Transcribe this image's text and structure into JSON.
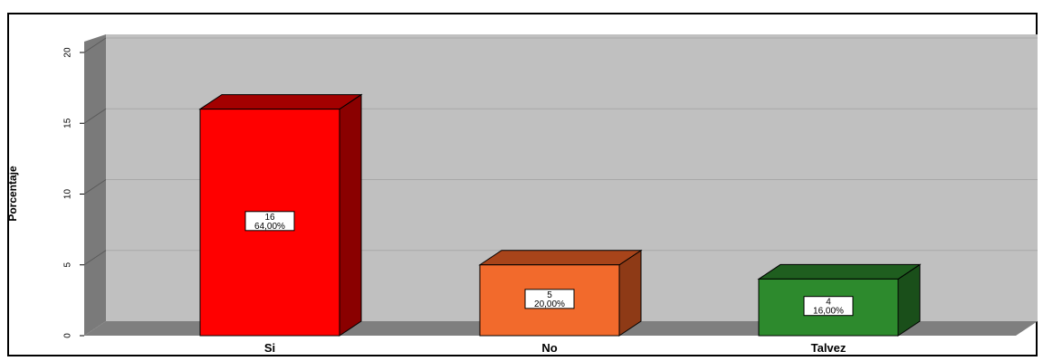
{
  "chart_data": {
    "type": "bar",
    "categories": [
      "Si",
      "No",
      "Talvez"
    ],
    "values": [
      16,
      5,
      4
    ],
    "value_labels": [
      "16\n64,00%",
      "5\n20,00%",
      "4\n16,00%"
    ],
    "percent_labels": [
      "64,00%",
      "20,00%",
      "16,00%"
    ],
    "colors": [
      "#ff0000",
      "#f26a2c",
      "#2d8a2d"
    ],
    "top_colors": [
      "#a30000",
      "#a8441a",
      "#1f5e1f"
    ],
    "side_colors": [
      "#8a0000",
      "#8e3a16",
      "#1a4f1a"
    ],
    "ylabel": "Porcentaje",
    "xlabel": "",
    "ylim": [
      0,
      20
    ],
    "yticks": [
      0,
      5,
      10,
      15,
      20
    ],
    "grid": true,
    "style": "3d-bar",
    "wall_color": "#c0c0c0",
    "floor_color": "#808080"
  }
}
